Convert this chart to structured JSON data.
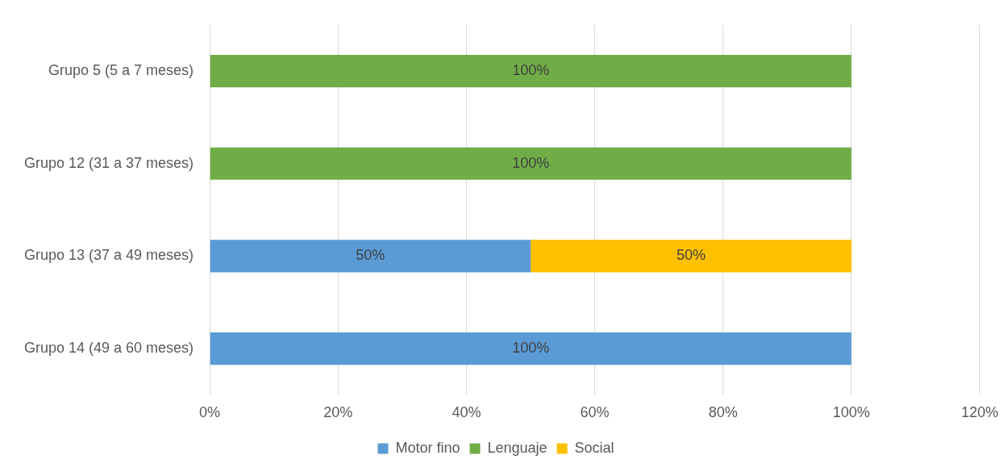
{
  "chart_data": {
    "type": "bar",
    "orientation": "horizontal",
    "stacked": true,
    "categories": [
      "Grupo 5 (5 a 7 meses)",
      "Grupo 12 (31 a 37 meses)",
      "Grupo 13 (37 a 49 meses)",
      "Grupo 14 (49 a 60 meses)"
    ],
    "series": [
      {
        "name": "Motor fino",
        "color": "#5b9bd5",
        "values": [
          null,
          null,
          50,
          100
        ],
        "value_labels": [
          null,
          null,
          "50%",
          "100%"
        ]
      },
      {
        "name": "Lenguaje",
        "color": "#70ad47",
        "values": [
          100,
          100,
          null,
          null
        ],
        "value_labels": [
          "100%",
          "100%",
          null,
          null
        ]
      },
      {
        "name": "Social",
        "color": "#ffc000",
        "values": [
          null,
          null,
          50,
          null
        ],
        "value_labels": [
          null,
          null,
          "50%",
          null
        ]
      }
    ],
    "xlim": [
      0,
      120
    ],
    "xticks": [
      {
        "value": 0,
        "label": "0%"
      },
      {
        "value": 20,
        "label": "20%"
      },
      {
        "value": 40,
        "label": "40%"
      },
      {
        "value": 60,
        "label": "60%"
      },
      {
        "value": 80,
        "label": "80%"
      },
      {
        "value": 100,
        "label": "100%"
      },
      {
        "value": 120,
        "label": "120%"
      }
    ],
    "grid": "x",
    "legend": "bottom"
  }
}
